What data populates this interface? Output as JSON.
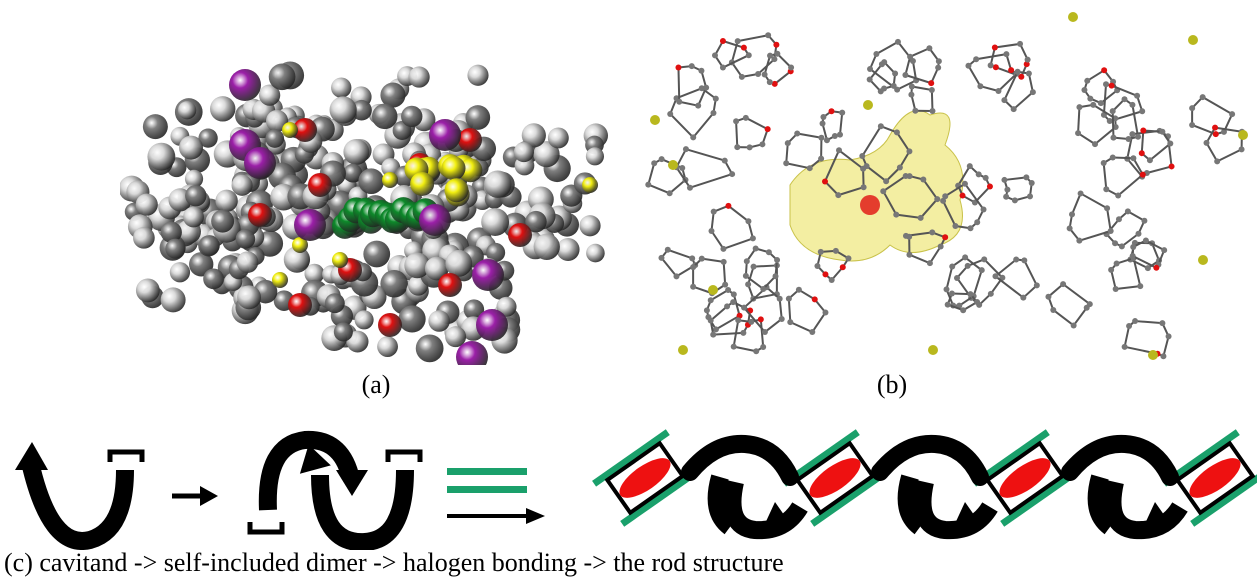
{
  "figure": {
    "panel_a_label": "(a)",
    "panel_b_label": "(b)",
    "caption": "(c) cavitand -> self-included dimer -> halogen bonding -> the rod structure",
    "colors": {
      "iodine": "#9b1fa8",
      "oxygen": "#e01010",
      "sulfur": "#f2ef10",
      "guest": "#0d8a2a",
      "carbon": "#808080",
      "hydrogen": "#d9d9d9",
      "surface": "#eee77a",
      "halogen_bond": "#1aa06b",
      "arrow": "#000000",
      "ellipse": "#ee1111"
    },
    "icons": [
      "spacefill-model",
      "ball-and-stick-model",
      "cavitand-symbol",
      "dimer-symbol",
      "equals-symbol",
      "rod-chain-symbol"
    ]
  }
}
